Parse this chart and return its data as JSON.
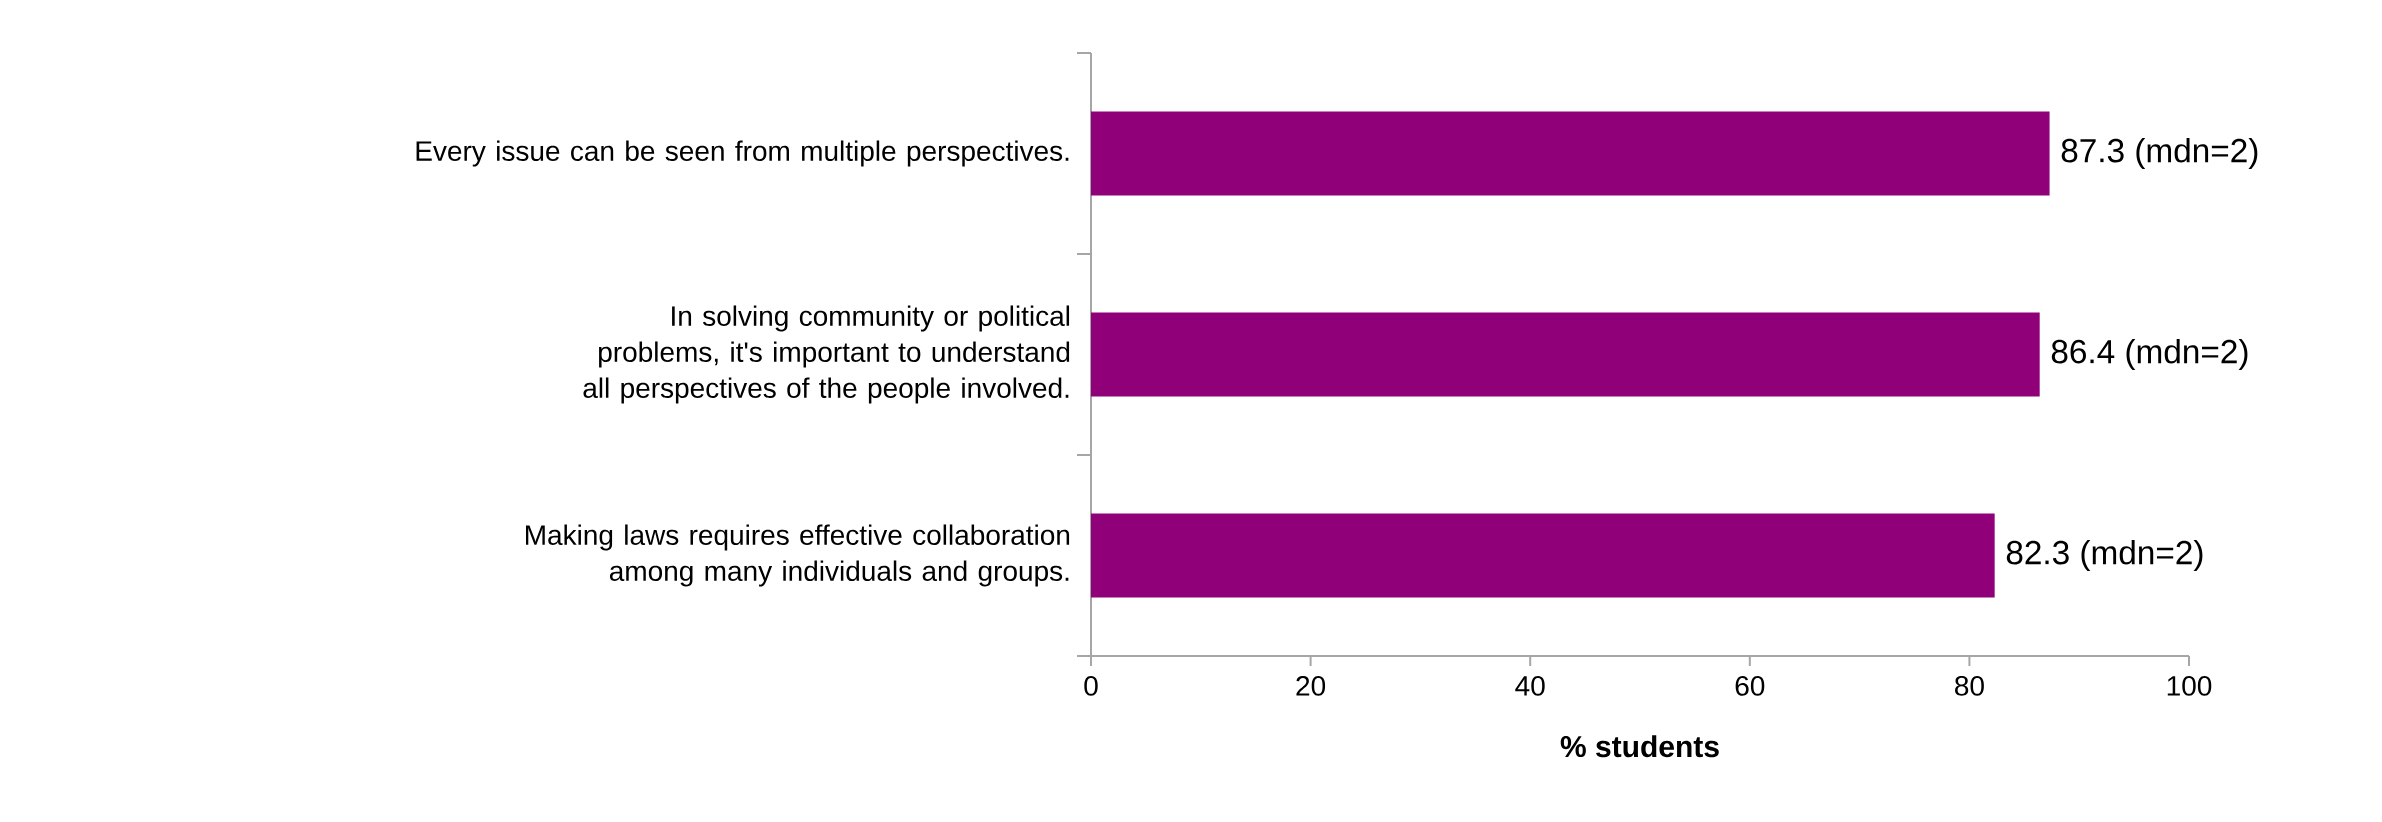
{
  "chart_data": {
    "type": "bar",
    "orientation": "horizontal",
    "xlabel": "% students",
    "categories": [
      "Every issue can be seen from multiple perspectives.",
      "In solving community or political problems, it's important to understand all perspectives of the people involved.",
      "Making laws requires effective collaboration among many individuals and groups."
    ],
    "values": [
      87.3,
      86.4,
      82.3
    ],
    "value_labels": [
      "87.3 (mdn=2)",
      "86.4 (mdn=2)",
      "82.3 (mdn=2)"
    ],
    "color": "#900078",
    "xlim": [
      0,
      100
    ],
    "xticks": [
      0,
      20,
      40,
      60,
      80,
      100
    ]
  }
}
